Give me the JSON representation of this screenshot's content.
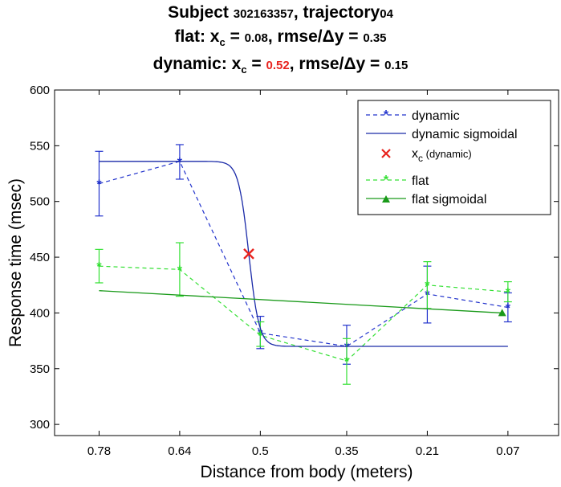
{
  "title": {
    "line1_prefix": "Subject ",
    "subject_id": "302163357",
    "line1_mid": ", trajectory",
    "trajectory_num": "04",
    "line2_label": "flat: x",
    "line2_sub": "c",
    "line2_eq": " = ",
    "line2_xc": "0.08",
    "line2_rest": ", rmse/",
    "line2_delta": "Δy",
    "line2_eq2": " = ",
    "line2_rmse": "0.35",
    "line3_label": "dynamic: x",
    "line3_sub": "c",
    "line3_eq": " = ",
    "line3_xc": "0.52",
    "line3_rest": ", rmse/",
    "line3_delta": "Δy",
    "line3_eq2": " = ",
    "line3_rmse": "0.15",
    "highlight_color": "#e8231e"
  },
  "chart_data": {
    "type": "line",
    "xlabel": "Distance from body (meters)",
    "ylabel": "Response time (msec)",
    "xlim": [
      0.8573,
      -0.018
    ],
    "ylim": [
      290,
      600
    ],
    "x_ticks": [
      0.78,
      0.64,
      0.5,
      0.35,
      0.21,
      0.07
    ],
    "x_tick_labels": [
      "0.78",
      "0.64",
      "0.5",
      "0.35",
      "0.21",
      "0.07"
    ],
    "y_ticks": [
      300,
      350,
      400,
      450,
      500,
      550,
      600
    ],
    "y_tick_labels": [
      "300",
      "350",
      "400",
      "450",
      "500",
      "550",
      "600"
    ],
    "legend_position": "top-right",
    "series": [
      {
        "name": "dynamic",
        "style": "dashed-star",
        "color": "#2233cc",
        "x": [
          0.78,
          0.64,
          0.5,
          0.35,
          0.21,
          0.07
        ],
        "values": [
          516,
          536,
          382,
          370,
          417,
          405
        ],
        "err_low": [
          487,
          520,
          368,
          354,
          391,
          392
        ],
        "err_high": [
          545,
          551,
          397,
          389,
          442,
          418
        ]
      },
      {
        "name": "dynamic sigmoidal",
        "style": "solid",
        "color": "#1a2aa8",
        "sigmoid": {
          "x_start": 0.78,
          "x_end": 0.07,
          "low": 370,
          "high": 536,
          "center": 0.52,
          "scale": 0.009
        }
      },
      {
        "name": "x_c (dynamic)",
        "legend_label_main": "x",
        "legend_label_sub": "c",
        "legend_label_rest": " (dynamic)",
        "style": "x-marker",
        "color": "#e8231e",
        "x": [
          0.52
        ],
        "values": [
          453
        ]
      },
      {
        "name": "flat",
        "style": "dashed-star",
        "color": "#33e033",
        "x": [
          0.78,
          0.64,
          0.5,
          0.35,
          0.21,
          0.07
        ],
        "values": [
          442,
          439,
          380,
          357,
          425,
          419
        ],
        "err_low": [
          427,
          415,
          370,
          336,
          404,
          410
        ],
        "err_high": [
          457,
          463,
          392,
          377,
          446,
          428
        ]
      },
      {
        "name": "flat sigmoidal",
        "style": "solid-triangle",
        "color": "#1a9a1a",
        "x": [
          0.78,
          0.08
        ],
        "values": [
          420,
          400
        ],
        "marker_x": 0.08,
        "marker_value": 400
      }
    ]
  }
}
